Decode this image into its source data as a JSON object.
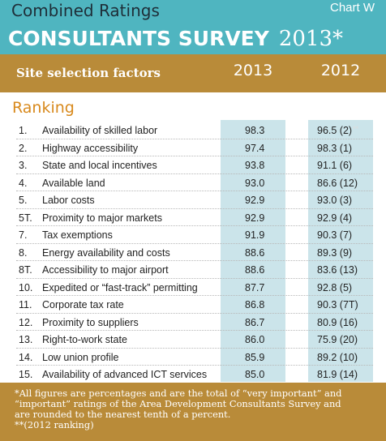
{
  "header": {
    "subtitle": "Combined Ratings",
    "chart_tag": "Chart W",
    "title": "CONSULTANTS SURVEY",
    "year": "2013*"
  },
  "table_header": {
    "label": "Site selection factors",
    "col_2013": "2013",
    "col_2012": "2012"
  },
  "section_label": "Ranking",
  "chart_data": {
    "type": "table",
    "title": "Combined Ratings CONSULTANTS SURVEY 2013*",
    "columns": [
      "Site selection factors",
      "2013",
      "2012"
    ],
    "rows": [
      {
        "rank": "1.",
        "factor": "Availability of skilled labor",
        "v2013": "98.3",
        "v2012": "96.5 (2)",
        "mark": "**"
      },
      {
        "rank": "2.",
        "factor": "Highway accessibility",
        "v2013": "97.4",
        "v2012": "98.3 (1)"
      },
      {
        "rank": "3.",
        "factor": "State and local incentives",
        "v2013": "93.8",
        "v2012": "91.1 (6)"
      },
      {
        "rank": "4.",
        "factor": "Available land",
        "v2013": "93.0",
        "v2012": "86.6 (12)"
      },
      {
        "rank": "5.",
        "factor": "Labor costs",
        "v2013": "92.9",
        "v2012": "93.0 (3)"
      },
      {
        "rank": "5T.",
        "factor": "Proximity to major markets",
        "v2013": "92.9",
        "v2012": "92.9 (4)"
      },
      {
        "rank": "7.",
        "factor": "Tax exemptions",
        "v2013": "91.9",
        "v2012": "90.3 (7)"
      },
      {
        "rank": "8.",
        "factor": "Energy availability and costs",
        "v2013": "88.6",
        "v2012": "89.3 (9)"
      },
      {
        "rank": "8T.",
        "factor": "Accessibility to major airport",
        "v2013": "88.6",
        "v2012": "83.6 (13)"
      },
      {
        "rank": "10.",
        "factor": "Expedited or “fast-track” permitting",
        "v2013": "87.7",
        "v2012": "92.8 (5)"
      },
      {
        "rank": "11.",
        "factor": "Corporate tax rate",
        "v2013": "86.8",
        "v2012": "90.3 (7T)"
      },
      {
        "rank": "12.",
        "factor": "Proximity to suppliers",
        "v2013": "86.7",
        "v2012": "80.9 (16)"
      },
      {
        "rank": "13.",
        "factor": "Right-to-work state",
        "v2013": "86.0",
        "v2012": "75.9 (20)"
      },
      {
        "rank": "14.",
        "factor": "Low union profile",
        "v2013": "85.9",
        "v2012": "89.2 (10)"
      },
      {
        "rank": "15.",
        "factor": "Availability of advanced ICT services",
        "v2013": "85.0",
        "v2012": "81.9 (14)"
      }
    ]
  },
  "footer": {
    "line1": "*All figures are percentages and are the total of “very important” and",
    "line2": "“important” ratings of the Area Development Consultants Survey and",
    "line3": "are rounded to the nearest tenth of a percent.",
    "line4": "**(2012 ranking)"
  },
  "colors": {
    "teal": "#4fb5c0",
    "gold": "#b98b39",
    "column_shade": "#cbe4ea",
    "ranking_orange": "#d8891c"
  }
}
